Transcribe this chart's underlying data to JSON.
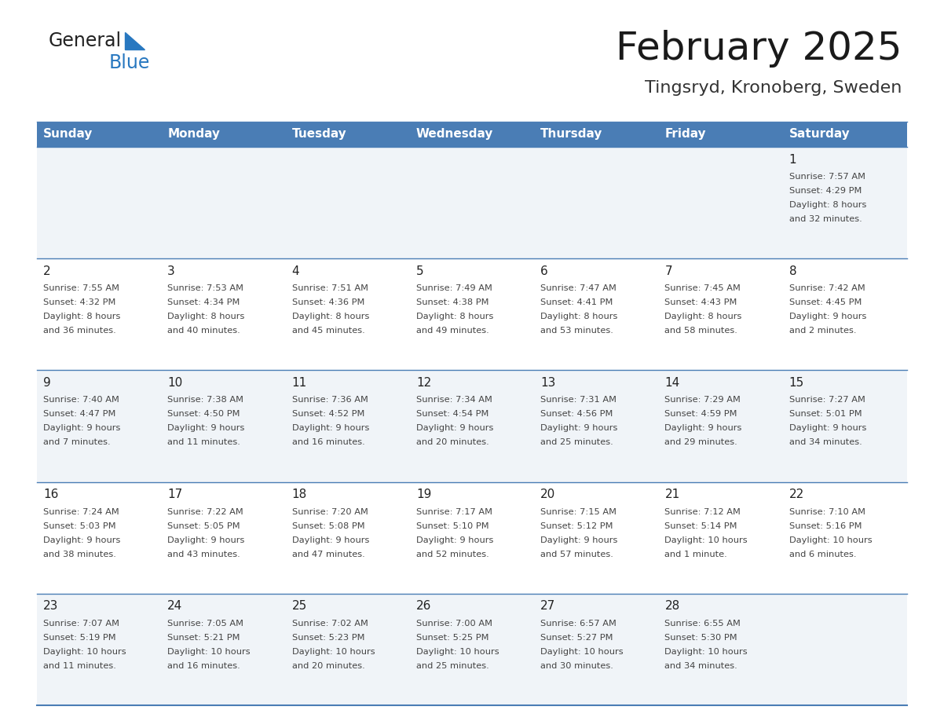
{
  "title": "February 2025",
  "subtitle": "Tingsryd, Kronoberg, Sweden",
  "days_of_week": [
    "Sunday",
    "Monday",
    "Tuesday",
    "Wednesday",
    "Thursday",
    "Friday",
    "Saturday"
  ],
  "header_bg": "#4a7db5",
  "header_text": "#ffffff",
  "cell_bg_odd": "#f0f4f8",
  "cell_bg_even": "#ffffff",
  "border_color": "#4a7db5",
  "text_color": "#444444",
  "day_number_color": "#222222",
  "logo_general_color": "#222222",
  "logo_blue_color": "#2878c0",
  "title_color": "#1a1a1a",
  "subtitle_color": "#333333",
  "calendar_data": [
    [
      null,
      null,
      null,
      null,
      null,
      null,
      {
        "day": 1,
        "sunrise": "7:57 AM",
        "sunset": "4:29 PM",
        "daylight": "8 hours",
        "daylight2": "and 32 minutes."
      }
    ],
    [
      {
        "day": 2,
        "sunrise": "7:55 AM",
        "sunset": "4:32 PM",
        "daylight": "8 hours",
        "daylight2": "and 36 minutes."
      },
      {
        "day": 3,
        "sunrise": "7:53 AM",
        "sunset": "4:34 PM",
        "daylight": "8 hours",
        "daylight2": "and 40 minutes."
      },
      {
        "day": 4,
        "sunrise": "7:51 AM",
        "sunset": "4:36 PM",
        "daylight": "8 hours",
        "daylight2": "and 45 minutes."
      },
      {
        "day": 5,
        "sunrise": "7:49 AM",
        "sunset": "4:38 PM",
        "daylight": "8 hours",
        "daylight2": "and 49 minutes."
      },
      {
        "day": 6,
        "sunrise": "7:47 AM",
        "sunset": "4:41 PM",
        "daylight": "8 hours",
        "daylight2": "and 53 minutes."
      },
      {
        "day": 7,
        "sunrise": "7:45 AM",
        "sunset": "4:43 PM",
        "daylight": "8 hours",
        "daylight2": "and 58 minutes."
      },
      {
        "day": 8,
        "sunrise": "7:42 AM",
        "sunset": "4:45 PM",
        "daylight": "9 hours",
        "daylight2": "and 2 minutes."
      }
    ],
    [
      {
        "day": 9,
        "sunrise": "7:40 AM",
        "sunset": "4:47 PM",
        "daylight": "9 hours",
        "daylight2": "and 7 minutes."
      },
      {
        "day": 10,
        "sunrise": "7:38 AM",
        "sunset": "4:50 PM",
        "daylight": "9 hours",
        "daylight2": "and 11 minutes."
      },
      {
        "day": 11,
        "sunrise": "7:36 AM",
        "sunset": "4:52 PM",
        "daylight": "9 hours",
        "daylight2": "and 16 minutes."
      },
      {
        "day": 12,
        "sunrise": "7:34 AM",
        "sunset": "4:54 PM",
        "daylight": "9 hours",
        "daylight2": "and 20 minutes."
      },
      {
        "day": 13,
        "sunrise": "7:31 AM",
        "sunset": "4:56 PM",
        "daylight": "9 hours",
        "daylight2": "and 25 minutes."
      },
      {
        "day": 14,
        "sunrise": "7:29 AM",
        "sunset": "4:59 PM",
        "daylight": "9 hours",
        "daylight2": "and 29 minutes."
      },
      {
        "day": 15,
        "sunrise": "7:27 AM",
        "sunset": "5:01 PM",
        "daylight": "9 hours",
        "daylight2": "and 34 minutes."
      }
    ],
    [
      {
        "day": 16,
        "sunrise": "7:24 AM",
        "sunset": "5:03 PM",
        "daylight": "9 hours",
        "daylight2": "and 38 minutes."
      },
      {
        "day": 17,
        "sunrise": "7:22 AM",
        "sunset": "5:05 PM",
        "daylight": "9 hours",
        "daylight2": "and 43 minutes."
      },
      {
        "day": 18,
        "sunrise": "7:20 AM",
        "sunset": "5:08 PM",
        "daylight": "9 hours",
        "daylight2": "and 47 minutes."
      },
      {
        "day": 19,
        "sunrise": "7:17 AM",
        "sunset": "5:10 PM",
        "daylight": "9 hours",
        "daylight2": "and 52 minutes."
      },
      {
        "day": 20,
        "sunrise": "7:15 AM",
        "sunset": "5:12 PM",
        "daylight": "9 hours",
        "daylight2": "and 57 minutes."
      },
      {
        "day": 21,
        "sunrise": "7:12 AM",
        "sunset": "5:14 PM",
        "daylight": "10 hours",
        "daylight2": "and 1 minute."
      },
      {
        "day": 22,
        "sunrise": "7:10 AM",
        "sunset": "5:16 PM",
        "daylight": "10 hours",
        "daylight2": "and 6 minutes."
      }
    ],
    [
      {
        "day": 23,
        "sunrise": "7:07 AM",
        "sunset": "5:19 PM",
        "daylight": "10 hours",
        "daylight2": "and 11 minutes."
      },
      {
        "day": 24,
        "sunrise": "7:05 AM",
        "sunset": "5:21 PM",
        "daylight": "10 hours",
        "daylight2": "and 16 minutes."
      },
      {
        "day": 25,
        "sunrise": "7:02 AM",
        "sunset": "5:23 PM",
        "daylight": "10 hours",
        "daylight2": "and 20 minutes."
      },
      {
        "day": 26,
        "sunrise": "7:00 AM",
        "sunset": "5:25 PM",
        "daylight": "10 hours",
        "daylight2": "and 25 minutes."
      },
      {
        "day": 27,
        "sunrise": "6:57 AM",
        "sunset": "5:27 PM",
        "daylight": "10 hours",
        "daylight2": "and 30 minutes."
      },
      {
        "day": 28,
        "sunrise": "6:55 AM",
        "sunset": "5:30 PM",
        "daylight": "10 hours",
        "daylight2": "and 34 minutes."
      },
      null
    ]
  ]
}
